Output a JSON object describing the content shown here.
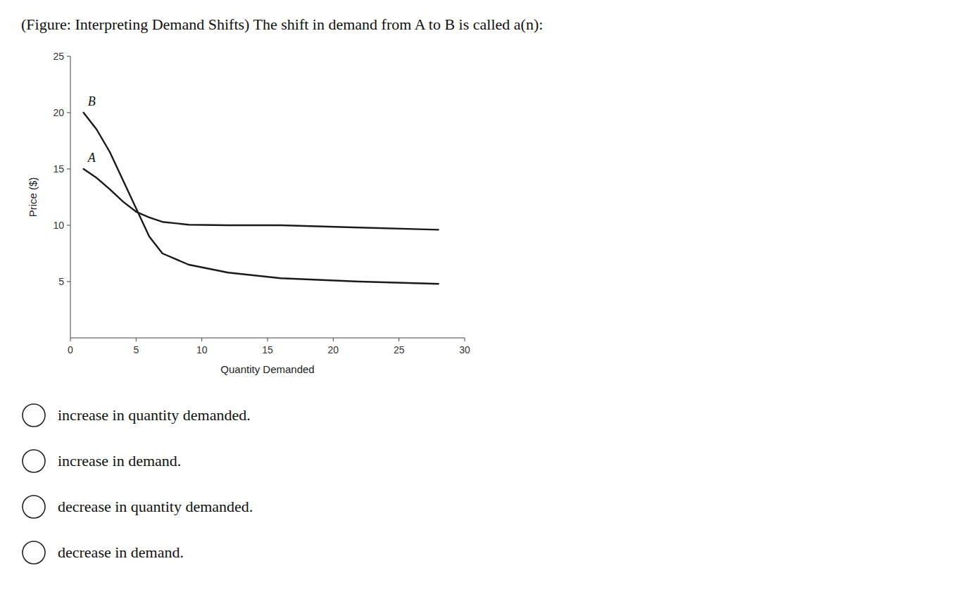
{
  "chart_data": {
    "type": "line",
    "title": "(Figure: Interpreting Demand Shifts) The shift in demand from A to B is called a(n):",
    "x_label": "Quantity Demanded",
    "y_label": "Price ($)",
    "xlim": [
      0,
      30
    ],
    "ylim": [
      0,
      25
    ],
    "xticks": [
      0,
      5,
      10,
      15,
      20,
      25,
      30
    ],
    "yticks": [
      5,
      10,
      15,
      20,
      25
    ],
    "grid": false,
    "x": [
      1,
      2,
      3,
      4,
      5,
      6,
      7,
      9,
      12,
      16,
      22,
      28
    ],
    "series": [
      {
        "name": "A",
        "color": "#1a1a1a",
        "values": [
          15.0,
          14.2,
          13.2,
          12.1,
          11.2,
          10.7,
          10.3,
          10.05,
          10.0,
          10.0,
          9.8,
          9.6
        ]
      },
      {
        "name": "B",
        "color": "#1a1a1a",
        "values": [
          20.0,
          18.5,
          16.5,
          14.0,
          11.5,
          9.0,
          7.5,
          6.5,
          5.8,
          5.3,
          5.0,
          4.8
        ]
      }
    ],
    "options": [
      "increase in quantity demanded.",
      "increase in demand.",
      "decrease in quantity demanded.",
      "decrease in demand."
    ]
  }
}
